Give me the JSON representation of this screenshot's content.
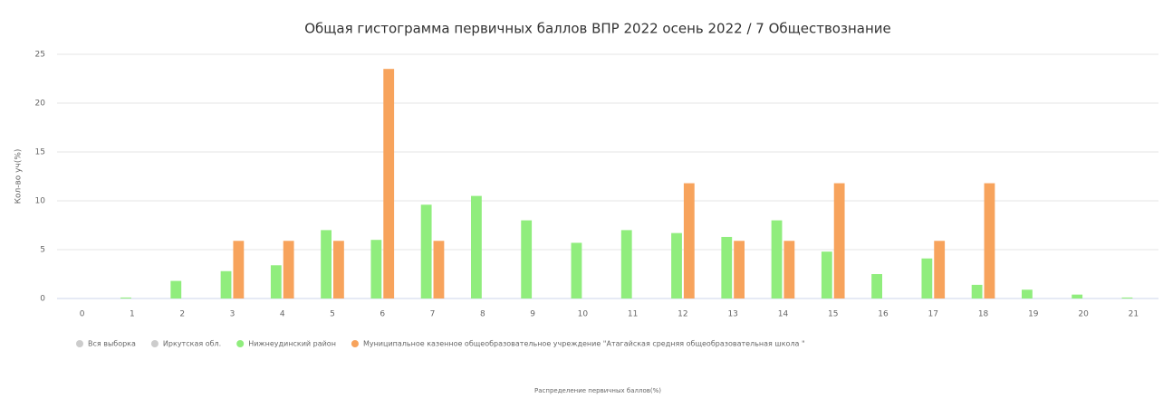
{
  "chart_data": {
    "type": "bar",
    "title": "Общая гистограмма первичных баллов ВПР 2022 осень 2022 / 7 Обществознание",
    "y_label": "Кол-во уч(%)",
    "x_label": "Распределение первичных баллов(%)",
    "categories": [
      "0",
      "1",
      "2",
      "3",
      "4",
      "5",
      "6",
      "7",
      "8",
      "9",
      "10",
      "11",
      "12",
      "13",
      "14",
      "15",
      "16",
      "17",
      "18",
      "19",
      "20",
      "21"
    ],
    "series": [
      {
        "name": "Вся выборка",
        "color": "#cccccc",
        "visible": false,
        "values": [
          null,
          null,
          null,
          null,
          null,
          null,
          null,
          null,
          null,
          null,
          null,
          null,
          null,
          null,
          null,
          null,
          null,
          null,
          null,
          null,
          null,
          null
        ]
      },
      {
        "name": "Иркутская обл.",
        "color": "#cccccc",
        "visible": false,
        "values": [
          null,
          null,
          null,
          null,
          null,
          null,
          null,
          null,
          null,
          null,
          null,
          null,
          null,
          null,
          null,
          null,
          null,
          null,
          null,
          null,
          null,
          null
        ]
      },
      {
        "name": "Нижнеудинский район",
        "color": "#90ed7d",
        "visible": true,
        "values": [
          0,
          0.1,
          1.8,
          2.8,
          3.4,
          7,
          6,
          9.6,
          10.5,
          8,
          5.7,
          7,
          6.7,
          6.3,
          8,
          4.8,
          2.5,
          4.1,
          1.4,
          0.9,
          0.4,
          0.1
        ]
      },
      {
        "name": "Муниципальное казенное общеобразовательное учреждение \"Атагайская средняя общеобразовательная школа \"",
        "color": "#f7a35c",
        "visible": true,
        "values": [
          0,
          0,
          0,
          5.9,
          5.9,
          5.9,
          23.5,
          5.9,
          0,
          0,
          0,
          0,
          11.8,
          5.9,
          5.9,
          11.8,
          0,
          5.9,
          11.8,
          0,
          0,
          0
        ]
      }
    ],
    "ylim": [
      0,
      25
    ],
    "yticks": [
      0,
      5,
      10,
      15,
      20,
      25
    ],
    "grid": true
  }
}
